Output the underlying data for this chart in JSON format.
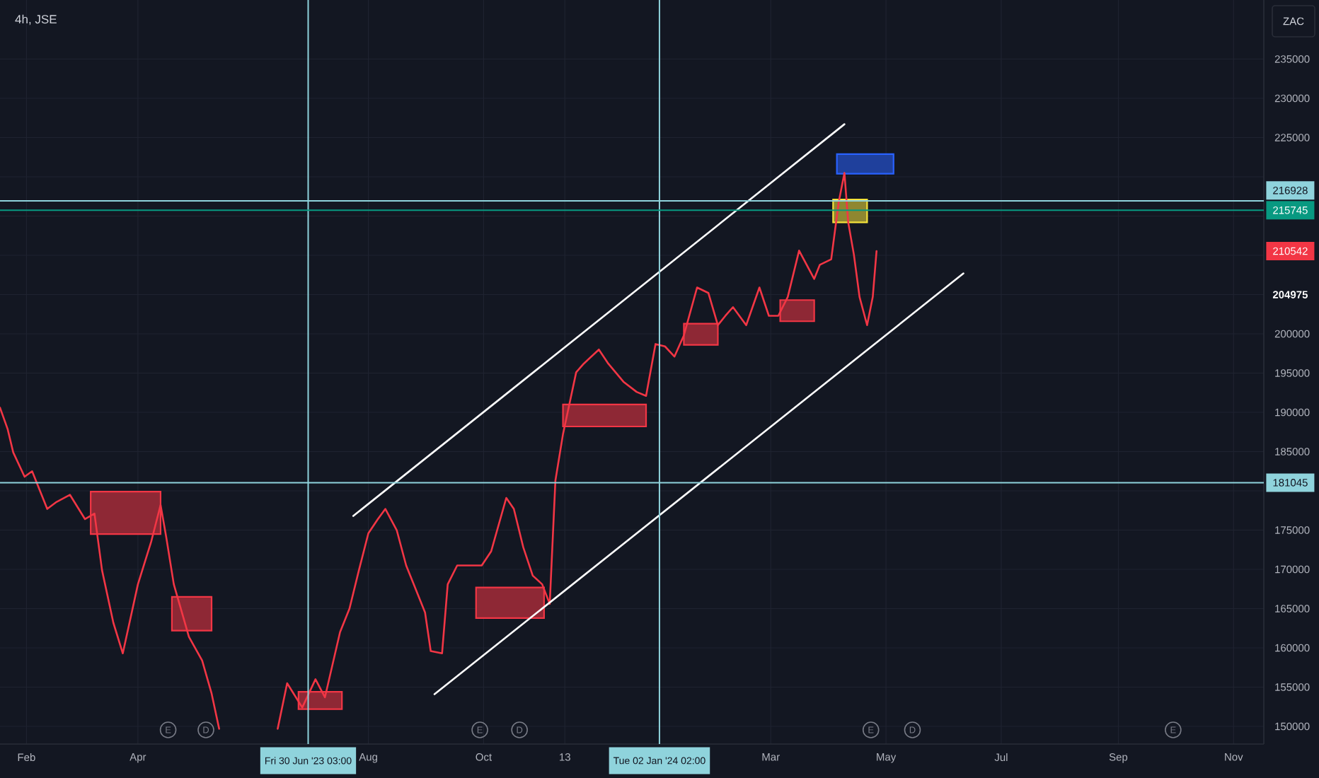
{
  "chart_data": {
    "type": "line",
    "title": "4h, JSE",
    "ylabel": "ZAC",
    "grid": true,
    "xlim": [
      "2023-01-18",
      "2024-11-17"
    ],
    "ylim": [
      147750,
      242520
    ],
    "xticks": [
      {
        "value": "2023-02-01",
        "label": "Feb"
      },
      {
        "value": "2023-04-01",
        "label": "Apr"
      },
      {
        "value": "2023-08-01",
        "label": "Aug"
      },
      {
        "value": "2023-10-01",
        "label": "Oct"
      },
      {
        "value": "2023-11-13",
        "label": "13"
      },
      {
        "value": "2024-03-01",
        "label": "Mar"
      },
      {
        "value": "2024-05-01",
        "label": "May"
      },
      {
        "value": "2024-07-01",
        "label": "Jul"
      },
      {
        "value": "2024-09-01",
        "label": "Sep"
      },
      {
        "value": "2024-11-01",
        "label": "Nov"
      }
    ],
    "yticks": [
      150000,
      155000,
      160000,
      165000,
      170000,
      175000,
      {
        "value": 180000,
        "label": null
      },
      185000,
      190000,
      195000,
      200000,
      {
        "value": 205000,
        "label": null
      },
      {
        "value": 210000,
        "label": null
      },
      {
        "value": 215000,
        "label": null
      },
      {
        "value": 220000,
        "label": null
      },
      225000,
      230000,
      235000
    ],
    "series": [
      {
        "type": "area",
        "color": "#f23645",
        "x": [
          "2023-03-07",
          "2023-04-13"
        ],
        "lower": [
          174500,
          174500
        ],
        "upper": [
          179900,
          179900
        ],
        "values": [
          null,
          null
        ]
      },
      {
        "type": "area",
        "color": "#f23645",
        "x": [
          "2023-04-19",
          "2023-05-10"
        ],
        "lower": [
          162200,
          162200
        ],
        "upper": [
          166500,
          166500
        ],
        "values": [
          null,
          null
        ]
      },
      {
        "type": "area",
        "color": "#f23645",
        "x": [
          "2023-06-25",
          "2023-07-18"
        ],
        "lower": [
          152200,
          152200
        ],
        "upper": [
          154400,
          154400
        ],
        "values": [
          null,
          null
        ]
      },
      {
        "type": "area",
        "color": "#f23645",
        "x": [
          "2023-09-27",
          "2023-11-02"
        ],
        "lower": [
          163800,
          163800
        ],
        "upper": [
          167700,
          167700
        ],
        "values": [
          null,
          null
        ]
      },
      {
        "type": "area",
        "color": "#f23645",
        "x": [
          "2023-11-12",
          "2023-12-26"
        ],
        "lower": [
          188200,
          188200
        ],
        "upper": [
          191000,
          191000
        ],
        "values": [
          null,
          null
        ]
      },
      {
        "type": "area",
        "color": "#f23645",
        "x": [
          "2024-01-15",
          "2024-02-02"
        ],
        "lower": [
          198600,
          198600
        ],
        "upper": [
          201300,
          201300
        ],
        "values": [
          null,
          null
        ]
      },
      {
        "type": "area",
        "color": "#f23645",
        "x": [
          "2024-03-06",
          "2024-03-24"
        ],
        "lower": [
          201600,
          201600
        ],
        "upper": [
          204300,
          204300
        ],
        "values": [
          null,
          null
        ]
      },
      {
        "type": "area",
        "color": "#f5e33b",
        "x": [
          "2024-04-03",
          "2024-04-21"
        ],
        "lower": [
          214200,
          214200
        ],
        "upper": [
          217100,
          217100
        ],
        "values": [
          null,
          null
        ]
      },
      {
        "type": "area",
        "color": "#2962ff",
        "x": [
          "2024-04-05",
          "2024-05-05"
        ],
        "lower": [
          220400,
          220400
        ],
        "upper": [
          222900,
          222900
        ],
        "values": [
          null,
          null
        ]
      },
      {
        "color": "#f23645",
        "x": [
          "2023-01-18",
          "2023-01-22",
          "2023-01-25",
          "2023-01-31",
          "2023-02-04",
          "2023-02-12",
          "2023-02-17",
          "2023-02-24",
          "2023-03-04",
          "2023-03-09",
          "2023-03-13",
          "2023-03-19",
          "2023-03-24",
          "2023-04-01",
          "2023-04-08",
          "2023-04-13",
          "2023-04-16",
          "2023-04-20",
          "2023-04-28",
          "2023-05-05",
          "2023-05-10",
          "2023-05-14",
          "2023-05-29",
          "2023-06-14",
          "2023-06-19",
          "2023-06-27",
          "2023-07-04",
          "2023-07-09",
          "2023-07-17",
          "2023-07-22",
          "2023-07-27",
          "2023-08-01",
          "2023-08-06",
          "2023-08-10",
          "2023-08-16",
          "2023-08-21",
          "2023-08-25",
          "2023-08-31",
          "2023-09-03",
          "2023-09-09",
          "2023-09-12",
          "2023-09-17",
          "2023-09-24",
          "2023-09-30",
          "2023-10-05",
          "2023-10-13",
          "2023-10-17",
          "2023-10-22",
          "2023-10-27",
          "2023-11-01",
          "2023-11-05",
          "2023-11-08",
          "2023-11-12",
          "2023-11-19",
          "2023-11-23",
          "2023-12-01",
          "2023-12-06",
          "2023-12-14",
          "2023-12-21",
          "2023-12-26",
          "2023-12-31",
          "2024-01-05",
          "2024-01-10",
          "2024-01-15",
          "2024-01-22",
          "2024-01-28",
          "2024-02-02",
          "2024-02-06",
          "2024-02-10",
          "2024-02-17",
          "2024-02-24",
          "2024-02-29",
          "2024-03-05",
          "2024-03-10",
          "2024-03-16",
          "2024-03-20",
          "2024-03-24",
          "2024-03-27",
          "2024-04-02",
          "2024-04-06",
          "2024-04-09",
          "2024-04-11",
          "2024-04-14",
          "2024-04-17",
          "2024-04-21",
          "2024-04-24",
          "2024-04-26"
        ],
        "values": [
          190600,
          187900,
          184900,
          181800,
          182500,
          177700,
          178600,
          179500,
          176400,
          177100,
          169900,
          163200,
          159300,
          168100,
          173500,
          178200,
          174100,
          168100,
          161400,
          158400,
          154200,
          149700,
          null,
          149700,
          155500,
          152400,
          156000,
          153700,
          162000,
          165000,
          169900,
          174600,
          176400,
          177700,
          175000,
          170500,
          168100,
          164500,
          159600,
          159300,
          168100,
          170500,
          170500,
          170500,
          172300,
          179100,
          177700,
          172800,
          169200,
          168100,
          165600,
          181300,
          187200,
          195100,
          196200,
          198000,
          196200,
          193900,
          192600,
          192100,
          198700,
          198400,
          197100,
          199800,
          205900,
          205200,
          201100,
          202300,
          203400,
          201100,
          205900,
          202300,
          202300,
          204700,
          210600,
          208800,
          207000,
          208800,
          209500,
          216800,
          220500,
          214200,
          210100,
          204700,
          201100,
          204700,
          210542
        ]
      },
      {
        "type": "line",
        "color": "#ffffff",
        "x": [
          "2023-07-24",
          "2024-04-09"
        ],
        "values": [
          176800,
          226700
        ]
      },
      {
        "type": "line",
        "color": "#ffffff",
        "x": [
          "2023-09-05",
          "2024-06-11"
        ],
        "values": [
          154100,
          207700
        ]
      }
    ],
    "ref_lines": [
      {
        "axis": "x",
        "value": "2023-06-30T03:00",
        "label": "Fri 30 Jun '23 03:00",
        "color": "#8fd3dc"
      },
      {
        "axis": "x",
        "value": "2024-01-02T02:00",
        "label": "Tue 02 Jan '24 02:00",
        "color": "#8fd3dc"
      },
      {
        "axis": "y",
        "value": 216928,
        "label": "216928",
        "color": "#8fd3dc"
      },
      {
        "axis": "y",
        "value": 215745,
        "label": "215745",
        "color": "#089981"
      },
      {
        "axis": "y",
        "value": 181045,
        "label": "181045",
        "color": "#8fd3dc"
      }
    ],
    "annotations": [
      {
        "text": "210542",
        "y": 210542
      },
      "204975",
      {
        "text": "E",
        "x": "2023-04-17"
      },
      {
        "text": "D",
        "x": "2023-05-07"
      },
      {
        "text": "E",
        "x": "2023-09-29"
      },
      {
        "text": "D",
        "x": "2023-10-20"
      },
      {
        "text": "E",
        "x": "2024-04-23"
      },
      {
        "text": "D",
        "x": "2024-05-15"
      },
      {
        "text": "E",
        "x": "2024-09-30"
      }
    ]
  }
}
